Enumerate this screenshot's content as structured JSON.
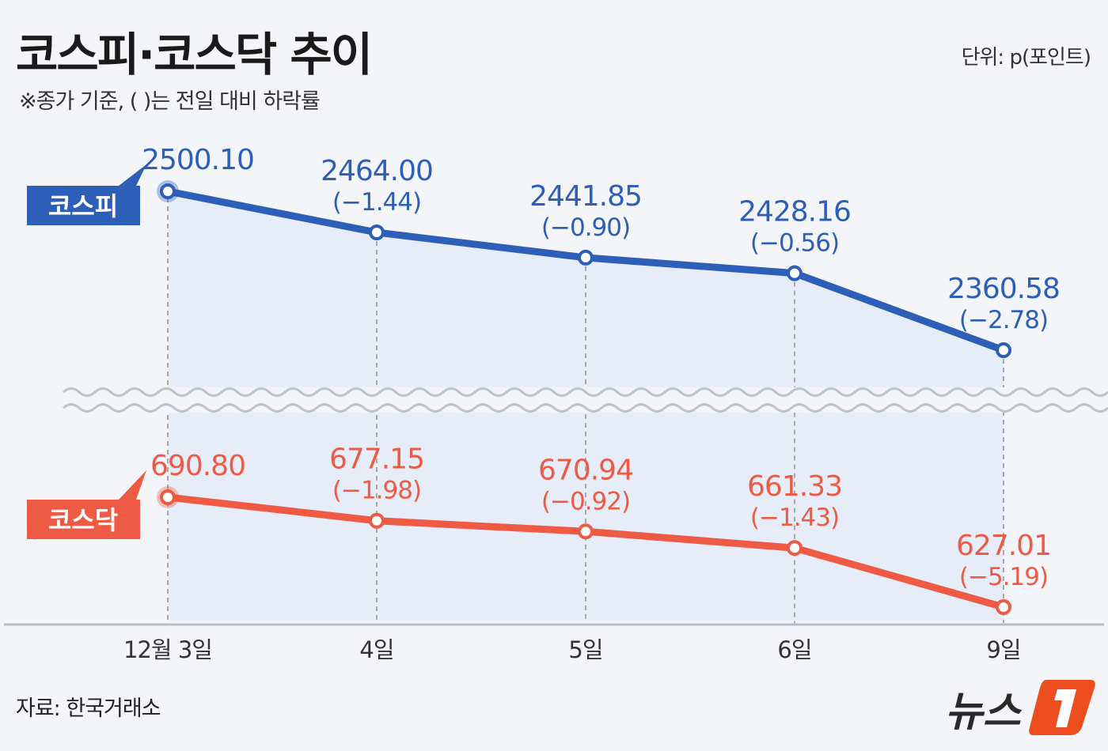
{
  "title": "코스피·코스닥 추이",
  "subtitle": "※종가 기준, ( )는 전일 대비 하락률",
  "unit": "단위: p(포인트)",
  "source": "자료: 한국거래소",
  "logo": "뉴스1",
  "chart_data": {
    "type": "line",
    "categories": [
      "12월 3일",
      "4일",
      "5일",
      "6일",
      "9일"
    ],
    "broken_axis": true,
    "series": [
      {
        "name": "코스피",
        "color": "#2d5fb8",
        "values": [
          2500.1,
          2464.0,
          2441.85,
          2428.16,
          2360.58
        ],
        "value_labels": [
          "2500.10",
          "2464.00",
          "2441.85",
          "2428.16",
          "2360.58"
        ],
        "change_labels": [
          "",
          "(−1.44)",
          "(−0.90)",
          "(−0.56)",
          "(−2.78)"
        ]
      },
      {
        "name": "코스닥",
        "color": "#ee5a44",
        "values": [
          690.8,
          677.15,
          670.94,
          661.33,
          627.01
        ],
        "value_labels": [
          "690.80",
          "677.15",
          "670.94",
          "661.33",
          "627.01"
        ],
        "change_labels": [
          "",
          "(−1.98)",
          "(−0.92)",
          "(−1.43)",
          "(−5.19)"
        ]
      }
    ]
  }
}
